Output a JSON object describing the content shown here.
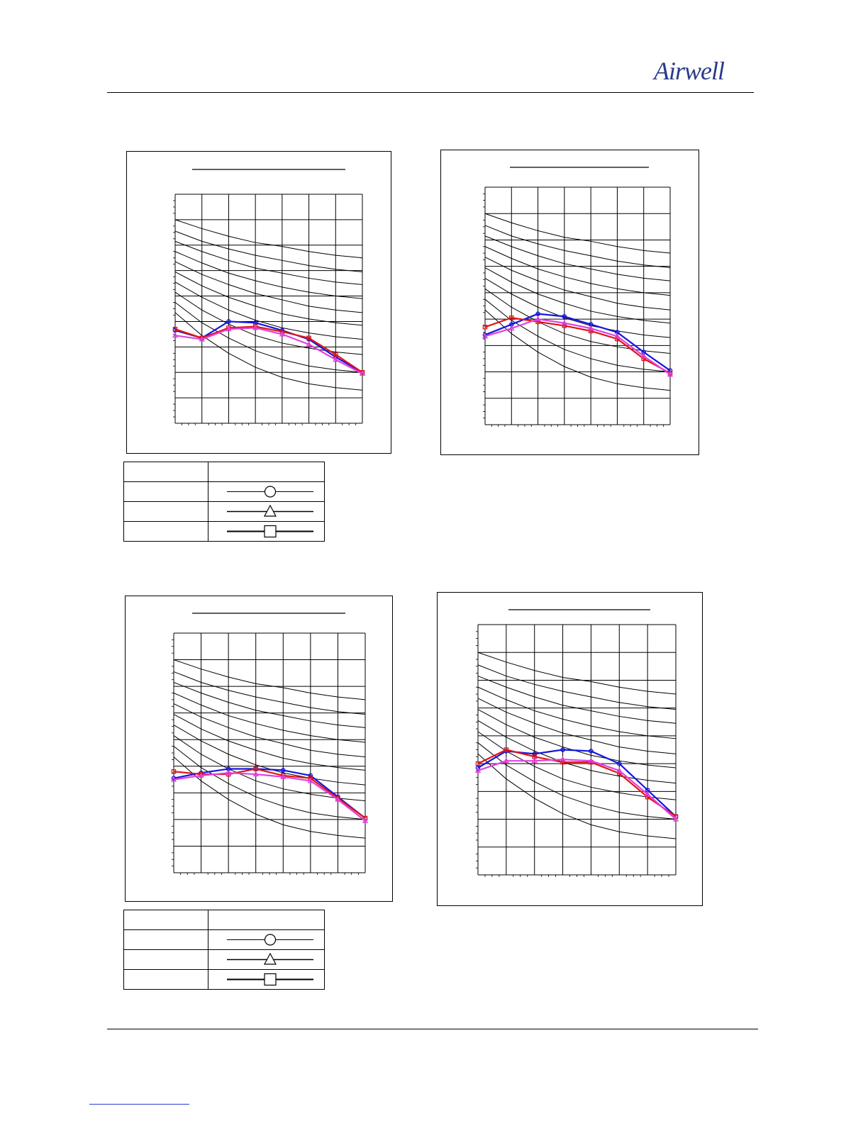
{
  "brand": {
    "name": "Airwell",
    "color": "#2a3a8a"
  },
  "colors": {
    "series_blue": "#1515e0",
    "series_red": "#e01515",
    "series_magenta": "#e040e0",
    "grid": "#000000",
    "curves": "#000000"
  },
  "legend_symbols": [
    "circle",
    "triangle",
    "square"
  ],
  "chart_data": [
    {
      "type": "line",
      "title": "",
      "grid": true,
      "x": [
        0,
        1,
        2,
        3,
        4,
        5,
        6,
        7
      ],
      "xlim": [
        0,
        7
      ],
      "ylim": [
        0,
        9
      ],
      "series": [
        {
          "color": "#1515e0",
          "marker": "circle",
          "values": [
            3.65,
            3.35,
            4.0,
            3.95,
            3.65,
            3.3,
            2.6,
            2.0
          ]
        },
        {
          "color": "#e01515",
          "marker": "square",
          "values": [
            3.7,
            3.35,
            3.75,
            3.8,
            3.6,
            3.35,
            2.7,
            2.0
          ]
        },
        {
          "color": "#e040e0",
          "marker": "triangle",
          "values": [
            3.45,
            3.3,
            3.7,
            3.75,
            3.5,
            3.1,
            2.5,
            1.95
          ]
        }
      ],
      "background_curves": [
        [
          8.0,
          7.65,
          7.35,
          7.1,
          6.95,
          6.75,
          6.6,
          6.5
        ],
        [
          7.55,
          7.15,
          6.85,
          6.6,
          6.4,
          6.2,
          6.05,
          5.95
        ],
        [
          7.15,
          6.75,
          6.4,
          6.1,
          5.9,
          5.7,
          5.55,
          5.45
        ],
        [
          6.75,
          6.3,
          5.9,
          5.6,
          5.35,
          5.15,
          5.0,
          4.9
        ],
        [
          6.35,
          5.85,
          5.45,
          5.1,
          4.85,
          4.6,
          4.45,
          4.35
        ],
        [
          5.95,
          5.4,
          4.95,
          4.6,
          4.3,
          4.1,
          3.95,
          3.85
        ],
        [
          5.55,
          4.95,
          4.45,
          4.05,
          3.75,
          3.55,
          3.4,
          3.3
        ],
        [
          5.15,
          4.45,
          3.9,
          3.45,
          3.15,
          2.95,
          2.8,
          2.7
        ],
        [
          4.75,
          3.95,
          3.35,
          2.85,
          2.5,
          2.25,
          2.1,
          2.0
        ],
        [
          4.35,
          3.45,
          2.75,
          2.2,
          1.8,
          1.55,
          1.4,
          1.3
        ]
      ]
    },
    {
      "type": "line",
      "title": "",
      "grid": true,
      "x": [
        0,
        1,
        2,
        3,
        4,
        5,
        6,
        7
      ],
      "xlim": [
        0,
        7
      ],
      "ylim": [
        0,
        9
      ],
      "series": [
        {
          "color": "#1515e0",
          "marker": "circle",
          "values": [
            3.4,
            3.8,
            4.2,
            4.1,
            3.8,
            3.5,
            2.75,
            2.05
          ]
        },
        {
          "color": "#e01515",
          "marker": "square",
          "values": [
            3.7,
            4.05,
            3.9,
            3.75,
            3.55,
            3.25,
            2.5,
            1.95
          ]
        },
        {
          "color": "#e040e0",
          "marker": "triangle",
          "values": [
            3.35,
            3.65,
            4.0,
            3.85,
            3.65,
            3.35,
            2.6,
            1.9
          ]
        }
      ],
      "background_curves": [
        [
          8.0,
          7.65,
          7.35,
          7.1,
          6.95,
          6.75,
          6.6,
          6.5
        ],
        [
          7.55,
          7.15,
          6.85,
          6.6,
          6.4,
          6.2,
          6.05,
          5.95
        ],
        [
          7.15,
          6.75,
          6.4,
          6.1,
          5.9,
          5.7,
          5.55,
          5.45
        ],
        [
          6.75,
          6.3,
          5.9,
          5.6,
          5.35,
          5.15,
          5.0,
          4.9
        ],
        [
          6.35,
          5.85,
          5.45,
          5.1,
          4.85,
          4.6,
          4.45,
          4.35
        ],
        [
          5.95,
          5.4,
          4.95,
          4.6,
          4.3,
          4.1,
          3.95,
          3.85
        ],
        [
          5.55,
          4.95,
          4.45,
          4.05,
          3.75,
          3.55,
          3.4,
          3.3
        ],
        [
          5.15,
          4.45,
          3.9,
          3.45,
          3.15,
          2.95,
          2.8,
          2.7
        ],
        [
          4.75,
          3.95,
          3.35,
          2.85,
          2.5,
          2.25,
          2.1,
          2.0
        ],
        [
          4.35,
          3.45,
          2.75,
          2.2,
          1.8,
          1.55,
          1.4,
          1.3
        ]
      ]
    },
    {
      "type": "line",
      "title": "",
      "grid": true,
      "x": [
        0,
        1,
        2,
        3,
        4,
        5,
        6,
        7
      ],
      "xlim": [
        0,
        7
      ],
      "ylim": [
        0,
        9
      ],
      "series": [
        {
          "color": "#1515e0",
          "marker": "circle",
          "values": [
            3.55,
            3.75,
            3.9,
            3.9,
            3.85,
            3.65,
            2.85,
            2.05
          ]
        },
        {
          "color": "#e01515",
          "marker": "square",
          "values": [
            3.8,
            3.7,
            3.7,
            3.9,
            3.65,
            3.55,
            2.8,
            2.05
          ]
        },
        {
          "color": "#e040e0",
          "marker": "triangle",
          "values": [
            3.5,
            3.65,
            3.75,
            3.7,
            3.6,
            3.45,
            2.75,
            1.95
          ]
        }
      ],
      "background_curves": [
        [
          8.0,
          7.65,
          7.35,
          7.1,
          6.95,
          6.75,
          6.6,
          6.5
        ],
        [
          7.55,
          7.15,
          6.85,
          6.6,
          6.4,
          6.2,
          6.05,
          5.95
        ],
        [
          7.15,
          6.75,
          6.4,
          6.1,
          5.9,
          5.7,
          5.55,
          5.45
        ],
        [
          6.75,
          6.3,
          5.9,
          5.6,
          5.35,
          5.15,
          5.0,
          4.9
        ],
        [
          6.35,
          5.85,
          5.45,
          5.1,
          4.85,
          4.6,
          4.45,
          4.35
        ],
        [
          5.95,
          5.4,
          4.95,
          4.6,
          4.3,
          4.1,
          3.95,
          3.85
        ],
        [
          5.55,
          4.95,
          4.45,
          4.05,
          3.75,
          3.55,
          3.4,
          3.3
        ],
        [
          5.15,
          4.45,
          3.9,
          3.45,
          3.15,
          2.95,
          2.8,
          2.7
        ],
        [
          4.75,
          3.95,
          3.35,
          2.85,
          2.5,
          2.25,
          2.1,
          2.0
        ],
        [
          4.35,
          3.45,
          2.75,
          2.2,
          1.8,
          1.55,
          1.4,
          1.3
        ]
      ]
    },
    {
      "type": "line",
      "title": "",
      "grid": true,
      "x": [
        0,
        1,
        2,
        3,
        4,
        5,
        6,
        7
      ],
      "xlim": [
        0,
        7
      ],
      "ylim": [
        0,
        9
      ],
      "series": [
        {
          "color": "#1515e0",
          "marker": "circle",
          "values": [
            3.85,
            4.45,
            4.35,
            4.5,
            4.45,
            4.0,
            3.05,
            2.1
          ]
        },
        {
          "color": "#e01515",
          "marker": "square",
          "values": [
            4.0,
            4.5,
            4.25,
            4.05,
            4.05,
            3.65,
            2.8,
            2.1
          ]
        },
        {
          "color": "#e040e0",
          "marker": "triangle",
          "values": [
            3.75,
            4.1,
            4.1,
            4.15,
            4.1,
            3.75,
            2.9,
            2.0
          ]
        }
      ],
      "background_curves": [
        [
          8.0,
          7.65,
          7.35,
          7.1,
          6.95,
          6.75,
          6.6,
          6.5
        ],
        [
          7.55,
          7.15,
          6.85,
          6.6,
          6.4,
          6.2,
          6.05,
          5.95
        ],
        [
          7.15,
          6.75,
          6.4,
          6.1,
          5.9,
          5.7,
          5.55,
          5.45
        ],
        [
          6.75,
          6.3,
          5.9,
          5.6,
          5.35,
          5.15,
          5.0,
          4.9
        ],
        [
          6.35,
          5.85,
          5.45,
          5.1,
          4.85,
          4.6,
          4.45,
          4.35
        ],
        [
          5.95,
          5.4,
          4.95,
          4.6,
          4.3,
          4.1,
          3.95,
          3.85
        ],
        [
          5.55,
          4.95,
          4.45,
          4.05,
          3.75,
          3.55,
          3.4,
          3.3
        ],
        [
          5.15,
          4.45,
          3.9,
          3.45,
          3.15,
          2.95,
          2.8,
          2.7
        ],
        [
          4.75,
          3.95,
          3.35,
          2.85,
          2.5,
          2.25,
          2.1,
          2.0
        ],
        [
          4.35,
          3.45,
          2.75,
          2.2,
          1.8,
          1.55,
          1.4,
          1.3
        ]
      ]
    }
  ]
}
